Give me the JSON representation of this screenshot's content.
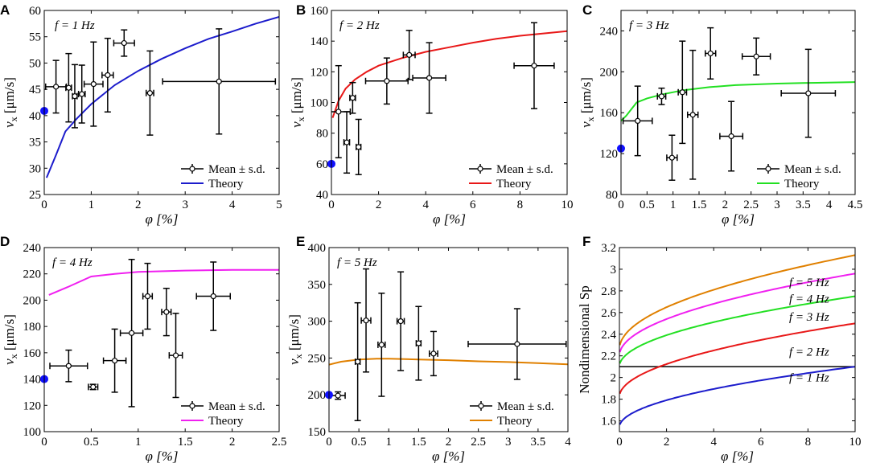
{
  "chart_data": [
    {
      "id": "A",
      "type": "scatter",
      "panel_label": "A",
      "annotation": "f = 1 Hz",
      "xlabel": "φ [%]",
      "ylabel": "vx [μm/s]",
      "ylabel_main": "v",
      "ylabel_sub": "x",
      "ylabel_rest": " [μm/s]",
      "xlim": [
        0,
        5
      ],
      "ylim": [
        25,
        60
      ],
      "xticks": [
        0,
        1,
        2,
        3,
        4,
        5
      ],
      "xtick_labels": [
        "0",
        "1",
        "2",
        "3",
        "4",
        "5"
      ],
      "yticks": [
        25,
        30,
        35,
        40,
        45,
        50,
        55,
        60
      ],
      "ytick_labels": [
        "25",
        "30",
        "35",
        "40",
        "45",
        "50",
        "55",
        "60"
      ],
      "theory_color": "#1c1ccc",
      "theory": [
        [
          0.05,
          28.2
        ],
        [
          0.25,
          32.5
        ],
        [
          0.45,
          37.0
        ],
        [
          0.7,
          39.5
        ],
        [
          1,
          42.2
        ],
        [
          1.5,
          45.8
        ],
        [
          2,
          48.5
        ],
        [
          2.5,
          50.8
        ],
        [
          3,
          52.8
        ],
        [
          3.5,
          54.6
        ],
        [
          4,
          56.0
        ],
        [
          4.5,
          57.5
        ],
        [
          5,
          58.8
        ]
      ],
      "measurements": [
        {
          "x": 0.25,
          "y": 45.5,
          "xerr": 0.22,
          "yerr": 5.0
        },
        {
          "x": 0.52,
          "y": 45.3,
          "xerr": 0.06,
          "yerr": 6.5
        },
        {
          "x": 0.65,
          "y": 43.7,
          "xerr": 0.05,
          "yerr": 6.0
        },
        {
          "x": 0.8,
          "y": 44.1,
          "xerr": 0.07,
          "yerr": 5.5
        },
        {
          "x": 1.05,
          "y": 46.0,
          "xerr": 0.2,
          "yerr": 8.0
        },
        {
          "x": 1.35,
          "y": 47.7,
          "xerr": 0.12,
          "yerr": 7.0
        },
        {
          "x": 1.7,
          "y": 53.8,
          "xerr": 0.22,
          "yerr": 2.5
        },
        {
          "x": 2.25,
          "y": 44.3,
          "xerr": 0.08,
          "yerr": 8.0
        },
        {
          "x": 3.72,
          "y": 46.5,
          "xerr": 1.2,
          "yerr": 10.0
        }
      ],
      "zero_point": {
        "x": 0,
        "y": 40.9
      },
      "legend": [
        "Mean ± s.d.",
        "Theory"
      ],
      "legend_position": "bottom-right"
    },
    {
      "id": "B",
      "type": "scatter",
      "panel_label": "B",
      "annotation": "f = 2 Hz",
      "xlabel": "φ [%]",
      "ylabel": "vx [μm/s]",
      "ylabel_main": "v",
      "ylabel_sub": "x",
      "ylabel_rest": " [μm/s]",
      "xlim": [
        0,
        10
      ],
      "ylim": [
        40,
        160
      ],
      "xticks": [
        0,
        2,
        4,
        6,
        8,
        10
      ],
      "xtick_labels": [
        "0",
        "2",
        "4",
        "6",
        "8",
        "10"
      ],
      "yticks": [
        40,
        60,
        80,
        100,
        120,
        140,
        160
      ],
      "ytick_labels": [
        "40",
        "60",
        "80",
        "100",
        "120",
        "140",
        "160"
      ],
      "theory_color": "#e81818",
      "theory": [
        [
          0.05,
          90
        ],
        [
          0.3,
          101
        ],
        [
          0.6,
          109
        ],
        [
          1,
          115
        ],
        [
          1.5,
          120
        ],
        [
          2,
          124
        ],
        [
          3,
          129
        ],
        [
          4,
          133
        ],
        [
          5,
          136
        ],
        [
          6,
          139
        ],
        [
          7,
          141.5
        ],
        [
          8,
          143.5
        ],
        [
          9,
          145
        ],
        [
          10,
          146.5
        ]
      ],
      "measurements": [
        {
          "x": 0.3,
          "y": 94,
          "xerr": 0.5,
          "yerr": 30
        },
        {
          "x": 0.65,
          "y": 74,
          "xerr": 0.12,
          "yerr": 20
        },
        {
          "x": 0.9,
          "y": 103,
          "xerr": 0.12,
          "yerr": 10
        },
        {
          "x": 1.15,
          "y": 71,
          "xerr": 0.1,
          "yerr": 18
        },
        {
          "x": 2.35,
          "y": 114,
          "xerr": 0.9,
          "yerr": 15
        },
        {
          "x": 3.3,
          "y": 131,
          "xerr": 0.25,
          "yerr": 16
        },
        {
          "x": 4.15,
          "y": 116,
          "xerr": 0.7,
          "yerr": 23
        },
        {
          "x": 8.6,
          "y": 124,
          "xerr": 0.85,
          "yerr": 28
        }
      ],
      "zero_point": {
        "x": 0,
        "y": 60
      },
      "legend": [
        "Mean ± s.d.",
        "Theory"
      ],
      "legend_position": "bottom-right"
    },
    {
      "id": "C",
      "type": "scatter",
      "panel_label": "C",
      "annotation": "f = 3 Hz",
      "xlabel": "φ [%]",
      "ylabel": "vx [μm/s]",
      "ylabel_main": "v",
      "ylabel_sub": "x",
      "ylabel_rest": " [μm/s]",
      "xlim": [
        0,
        4.5
      ],
      "ylim": [
        80,
        260
      ],
      "xticks": [
        0,
        0.5,
        1,
        1.5,
        2,
        2.5,
        3,
        3.5,
        4,
        4.5
      ],
      "xtick_labels": [
        "0",
        "0.5",
        "1",
        "1.5",
        "2",
        "2.5",
        "3",
        "3.5",
        "4",
        "4.5"
      ],
      "yticks": [
        80,
        120,
        160,
        200,
        240
      ],
      "ytick_labels": [
        "80",
        "120",
        "160",
        "200",
        "240"
      ],
      "theory_color": "#22e022",
      "theory": [
        [
          0,
          152
        ],
        [
          0.1,
          157
        ],
        [
          0.3,
          170
        ],
        [
          0.5,
          174
        ],
        [
          0.8,
          178
        ],
        [
          1.2,
          182
        ],
        [
          1.7,
          185
        ],
        [
          2.2,
          187
        ],
        [
          3,
          188.5
        ],
        [
          3.5,
          189
        ],
        [
          4.5,
          190
        ]
      ],
      "measurements": [
        {
          "x": 0.32,
          "y": 152,
          "xerr": 0.28,
          "yerr": 34
        },
        {
          "x": 0.78,
          "y": 176,
          "xerr": 0.08,
          "yerr": 8
        },
        {
          "x": 0.98,
          "y": 116,
          "xerr": 0.1,
          "yerr": 22
        },
        {
          "x": 1.18,
          "y": 180,
          "xerr": 0.08,
          "yerr": 50
        },
        {
          "x": 1.38,
          "y": 158,
          "xerr": 0.1,
          "yerr": 63
        },
        {
          "x": 1.72,
          "y": 218,
          "xerr": 0.1,
          "yerr": 25
        },
        {
          "x": 2.12,
          "y": 137,
          "xerr": 0.22,
          "yerr": 34
        },
        {
          "x": 2.6,
          "y": 215,
          "xerr": 0.27,
          "yerr": 18
        },
        {
          "x": 3.6,
          "y": 179,
          "xerr": 0.52,
          "yerr": 43
        }
      ],
      "zero_point": {
        "x": 0,
        "y": 125
      },
      "legend": [
        "Mean ± s.d.",
        "Theory"
      ],
      "legend_position": "bottom-right"
    },
    {
      "id": "D",
      "type": "scatter",
      "panel_label": "D",
      "annotation": "f = 4 Hz",
      "xlabel": "φ [%]",
      "ylabel": "vx [μm/s]",
      "ylabel_main": "v",
      "ylabel_sub": "x",
      "ylabel_rest": " [μm/s]",
      "xlim": [
        0,
        2.5
      ],
      "ylim": [
        100,
        240
      ],
      "xticks": [
        0,
        0.5,
        1,
        1.5,
        2,
        2.5
      ],
      "xtick_labels": [
        "0",
        "0.5",
        "1",
        "1.5",
        "2",
        "2.5"
      ],
      "yticks": [
        100,
        120,
        140,
        160,
        180,
        200,
        220,
        240
      ],
      "ytick_labels": [
        "100",
        "120",
        "140",
        "160",
        "180",
        "200",
        "220",
        "240"
      ],
      "theory_color": "#f020f0",
      "theory": [
        [
          0.05,
          204
        ],
        [
          0.25,
          210
        ],
        [
          0.5,
          218
        ],
        [
          0.75,
          220
        ],
        [
          1,
          221.5
        ],
        [
          1.5,
          222.5
        ],
        [
          2,
          223
        ],
        [
          2.5,
          223
        ]
      ],
      "measurements": [
        {
          "x": 0.26,
          "y": 150,
          "xerr": 0.2,
          "yerr": 12
        },
        {
          "x": 0.52,
          "y": 134,
          "xerr": 0.05,
          "yerr": 2
        },
        {
          "x": 0.75,
          "y": 154,
          "xerr": 0.12,
          "yerr": 24
        },
        {
          "x": 0.93,
          "y": 175,
          "xerr": 0.12,
          "yerr": 56
        },
        {
          "x": 1.1,
          "y": 203,
          "xerr": 0.05,
          "yerr": 25
        },
        {
          "x": 1.3,
          "y": 191,
          "xerr": 0.05,
          "yerr": 18
        },
        {
          "x": 1.4,
          "y": 158,
          "xerr": 0.07,
          "yerr": 32
        },
        {
          "x": 1.8,
          "y": 203,
          "xerr": 0.18,
          "yerr": 26
        }
      ],
      "zero_point": {
        "x": 0,
        "y": 140
      },
      "legend": [
        "Mean ± s.d.",
        "Theory"
      ],
      "legend_position": "bottom-right"
    },
    {
      "id": "E",
      "type": "scatter",
      "panel_label": "E",
      "annotation": "f = 5 Hz",
      "xlabel": "φ [%]",
      "ylabel": "vx [μm/s]",
      "ylabel_main": "v",
      "ylabel_sub": "x",
      "ylabel_rest": " [μm/s]",
      "xlim": [
        0,
        4
      ],
      "ylim": [
        150,
        400
      ],
      "xticks": [
        0,
        0.5,
        1,
        1.5,
        2,
        2.5,
        3,
        3.5,
        4
      ],
      "xtick_labels": [
        "0",
        "0.5",
        "1",
        "1.5",
        "2",
        "2.5",
        "3",
        "3.5",
        "4"
      ],
      "yticks": [
        150,
        200,
        250,
        300,
        350,
        400
      ],
      "ytick_labels": [
        "150",
        "200",
        "250",
        "300",
        "350",
        "400"
      ],
      "theory_color": "#e08000",
      "theory": [
        [
          0,
          241
        ],
        [
          0.2,
          245
        ],
        [
          0.5,
          248
        ],
        [
          0.8,
          249
        ],
        [
          1,
          249
        ],
        [
          1.5,
          248
        ],
        [
          2,
          247
        ],
        [
          2.5,
          245.5
        ],
        [
          3,
          244.5
        ],
        [
          3.5,
          243
        ],
        [
          4,
          241.5
        ]
      ],
      "measurements": [
        {
          "x": 0.15,
          "y": 199,
          "xerr": 0.12,
          "yerr": 5
        },
        {
          "x": 0.48,
          "y": 245,
          "xerr": 0.04,
          "yerr": 80
        },
        {
          "x": 0.62,
          "y": 301,
          "xerr": 0.08,
          "yerr": 70
        },
        {
          "x": 0.88,
          "y": 268,
          "xerr": 0.06,
          "yerr": 70
        },
        {
          "x": 1.2,
          "y": 300,
          "xerr": 0.06,
          "yerr": 67
        },
        {
          "x": 1.5,
          "y": 270,
          "xerr": 0.04,
          "yerr": 50
        },
        {
          "x": 1.75,
          "y": 256,
          "xerr": 0.07,
          "yerr": 30
        },
        {
          "x": 3.15,
          "y": 269,
          "xerr": 0.82,
          "yerr": 48
        }
      ],
      "zero_point": {
        "x": 0,
        "y": 200
      },
      "legend": [
        "Mean ± s.d.",
        "Theory"
      ],
      "legend_position": "bottom-right"
    },
    {
      "id": "F",
      "type": "line",
      "panel_label": "F",
      "xlabel": "φ [%]",
      "ylabel": "Nondimensional Sp",
      "xlim": [
        0,
        10
      ],
      "ylim": [
        1.5,
        3.2
      ],
      "xticks": [
        0,
        2,
        4,
        6,
        8,
        10
      ],
      "xtick_labels": [
        "0",
        "2",
        "4",
        "6",
        "8",
        "10"
      ],
      "yticks": [
        1.6,
        1.8,
        2,
        2.2,
        2.4,
        2.6,
        2.8,
        3,
        3.2
      ],
      "ytick_labels": [
        "1.6",
        "1.8",
        "2",
        "2.2",
        "2.4",
        "2.6",
        "2.8",
        "3",
        "3.2"
      ],
      "reference_line": {
        "y": 2.1,
        "color": "#000000"
      },
      "series": [
        {
          "name": "f = 1 Hz",
          "color": "#1c1ccc",
          "a": 1.54,
          "b": 0.56,
          "label_x": 7.2,
          "label_y": 2.0
        },
        {
          "name": "f = 2 Hz",
          "color": "#e81818",
          "a": 1.82,
          "b": 0.68,
          "label_x": 7.2,
          "label_y": 2.24
        },
        {
          "name": "f = 3 Hz",
          "color": "#22e022",
          "a": 2.1,
          "b": 0.65,
          "label_x": 7.2,
          "label_y": 2.56
        },
        {
          "name": "f = 4 Hz",
          "color": "#f020f0",
          "a": 2.2,
          "b": 0.76,
          "label_x": 7.2,
          "label_y": 2.73
        },
        {
          "name": "f = 5 Hz",
          "color": "#e08000",
          "a": 2.26,
          "b": 0.87,
          "label_x": 7.2,
          "label_y": 2.88
        }
      ]
    }
  ]
}
